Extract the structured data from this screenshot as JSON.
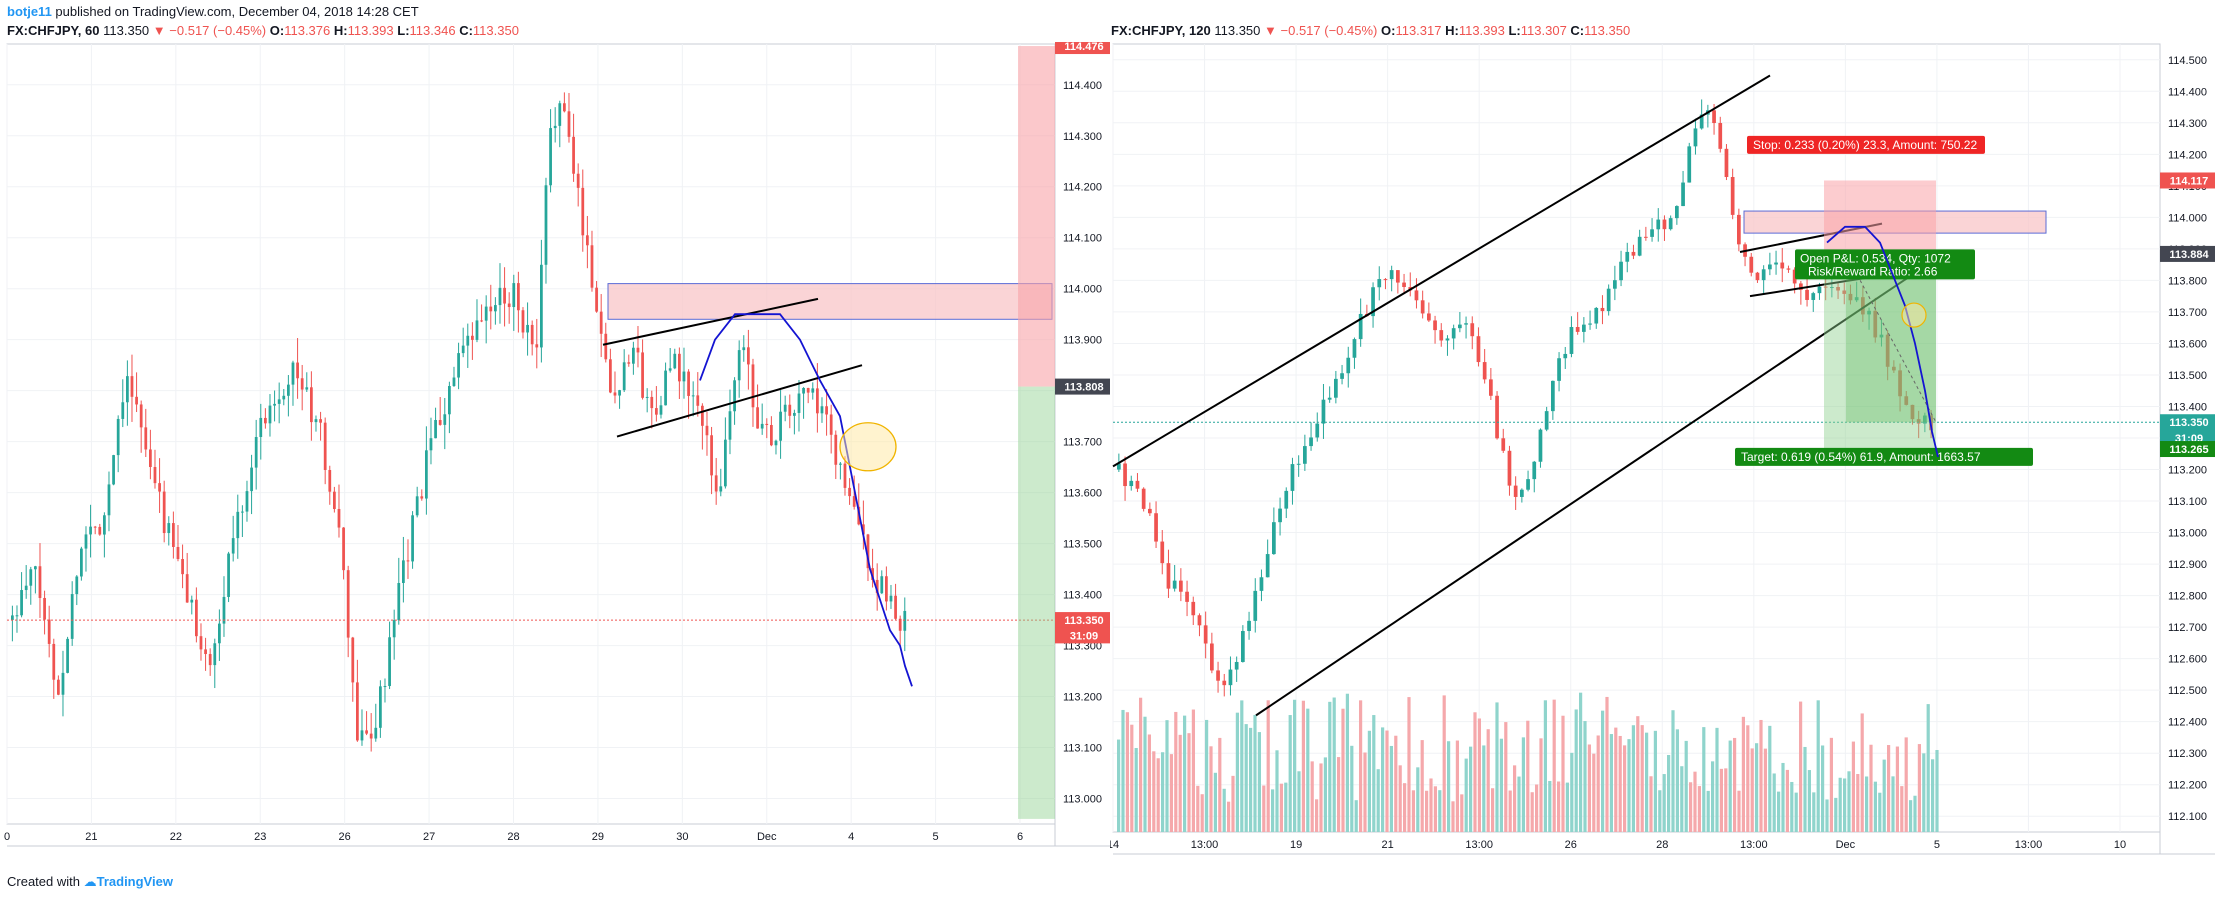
{
  "publisher": {
    "username": "botje11",
    "text": " published on TradingView.com, December 04, 2018 14:28 CET"
  },
  "footer": {
    "prefix": "Created with",
    "brand": "TradingView"
  },
  "colors": {
    "up": "#26a69a",
    "down": "#ef5350",
    "pattern": "#1414d2",
    "zone_fill": "#f8c6c8",
    "zone_stroke": "#5b6bd6",
    "stop_zone": "#f9a3a8",
    "target_zone": "#8fd18f"
  },
  "chart_data": [
    {
      "type": "candlestick",
      "symbol": "FX:CHFJPY",
      "interval": "60",
      "ohlc_header": {
        "last": "113.350",
        "change": "−0.517 (−0.45%)",
        "O": "113.376",
        "H": "113.393",
        "L": "113.346",
        "C": "113.350"
      },
      "ylim": [
        112.95,
        114.48
      ],
      "y_ticks": [
        "114.400",
        "114.300",
        "114.200",
        "114.100",
        "114.000",
        "113.900",
        "113.800",
        "113.700",
        "113.600",
        "113.500",
        "113.400",
        "113.300",
        "113.200",
        "113.100",
        "113.000"
      ],
      "x_ticks": [
        "0",
        "21",
        "22",
        "23",
        "26",
        "27",
        "28",
        "29",
        "30",
        "Dec",
        "4",
        "5",
        "6"
      ],
      "price_badges": [
        {
          "label": "114.476",
          "price": 114.476,
          "color": "#ef5350"
        },
        {
          "label": "113.808",
          "price": 113.808,
          "color": "#434651"
        },
        {
          "label": "113.350",
          "price": 113.35,
          "color": "#ef5350"
        },
        {
          "label": "31:09",
          "price": 113.32,
          "color": "#ef5350"
        }
      ],
      "resistance_zone": [
        113.94,
        114.01
      ],
      "close_line": 113.35,
      "path": [
        [
          0,
          113.35
        ],
        [
          5,
          113.45
        ],
        [
          10,
          113.2
        ],
        [
          15,
          113.5
        ],
        [
          20,
          113.55
        ],
        [
          25,
          113.85
        ],
        [
          30,
          113.65
        ],
        [
          35,
          113.5
        ],
        [
          40,
          113.35
        ],
        [
          44,
          113.25
        ],
        [
          48,
          113.5
        ],
        [
          55,
          113.75
        ],
        [
          62,
          113.85
        ],
        [
          68,
          113.7
        ],
        [
          72,
          113.5
        ],
        [
          76,
          113.1
        ],
        [
          80,
          113.15
        ],
        [
          86,
          113.45
        ],
        [
          92,
          113.7
        ],
        [
          98,
          113.85
        ],
        [
          104,
          113.95
        ],
        [
          110,
          114.0
        ],
        [
          115,
          113.85
        ],
        [
          118,
          114.3
        ],
        [
          120,
          114.38
        ],
        [
          124,
          114.2
        ],
        [
          128,
          113.98
        ],
        [
          132,
          113.78
        ],
        [
          136,
          113.9
        ],
        [
          140,
          113.75
        ],
        [
          145,
          113.85
        ],
        [
          150,
          113.78
        ],
        [
          155,
          113.6
        ],
        [
          160,
          113.9
        ],
        [
          165,
          113.7
        ],
        [
          170,
          113.75
        ],
        [
          175,
          113.8
        ],
        [
          180,
          113.7
        ],
        [
          185,
          113.55
        ],
        [
          190,
          113.42
        ],
        [
          196,
          113.34
        ]
      ],
      "volume": false
    },
    {
      "type": "candlestick",
      "symbol": "FX:CHFJPY",
      "interval": "120",
      "ohlc_header": {
        "last": "113.350",
        "change": "−0.517 (−0.45%)",
        "O": "113.317",
        "H": "113.393",
        "L": "113.307",
        "C": "113.350"
      },
      "ylim": [
        112.05,
        114.55
      ],
      "y_ticks": [
        "114.500",
        "114.400",
        "114.300",
        "114.200",
        "114.100",
        "114.000",
        "113.900",
        "113.800",
        "113.700",
        "113.600",
        "113.500",
        "113.400",
        "113.300",
        "113.200",
        "113.100",
        "113.000",
        "112.900",
        "112.800",
        "112.700",
        "112.600",
        "112.500",
        "112.400",
        "112.300",
        "112.200",
        "112.100"
      ],
      "x_ticks": [
        "14",
        "13:00",
        "19",
        "21",
        "13:00",
        "26",
        "28",
        "13:00",
        "Dec",
        "5",
        "13:00",
        "10"
      ],
      "price_badges": [
        {
          "label": "114.117",
          "price": 114.117,
          "color": "#ef5350"
        },
        {
          "label": "113.884",
          "price": 113.884,
          "color": "#434651"
        },
        {
          "label": "113.350",
          "price": 113.35,
          "color": "#26a69a"
        },
        {
          "label": "31:09",
          "price": 113.3,
          "color": "#26a69a"
        },
        {
          "label": "113.265",
          "price": 113.265,
          "color": "#138a13"
        }
      ],
      "resistance_zone": [
        113.95,
        114.02
      ],
      "close_line": 113.35,
      "position": {
        "stop_label": "Stop: 0.233 (0.20%) 23.3, Amount: 750.22",
        "open_label": "Open P&L: 0.534, Qty: 1072",
        "rr_label": "Risk/Reward Ratio: 2.66",
        "target_label": "Target: 0.619 (0.54%) 61.9, Amount: 1663.57",
        "entry": 113.884,
        "stop": 114.117,
        "target": 113.265
      },
      "path": [
        [
          0,
          113.2
        ],
        [
          4,
          113.1
        ],
        [
          8,
          112.85
        ],
        [
          12,
          112.75
        ],
        [
          16,
          112.5
        ],
        [
          20,
          112.65
        ],
        [
          24,
          112.95
        ],
        [
          28,
          113.2
        ],
        [
          32,
          113.35
        ],
        [
          36,
          113.5
        ],
        [
          40,
          113.7
        ],
        [
          44,
          113.85
        ],
        [
          48,
          113.75
        ],
        [
          52,
          113.6
        ],
        [
          56,
          113.7
        ],
        [
          60,
          113.45
        ],
        [
          64,
          113.1
        ],
        [
          66,
          113.12
        ],
        [
          70,
          113.45
        ],
        [
          74,
          113.65
        ],
        [
          78,
          113.7
        ],
        [
          82,
          113.85
        ],
        [
          86,
          113.95
        ],
        [
          90,
          114.0
        ],
        [
          94,
          114.3
        ],
        [
          96,
          114.35
        ],
        [
          98,
          114.2
        ],
        [
          100,
          113.95
        ],
        [
          104,
          113.8
        ],
        [
          108,
          113.85
        ],
        [
          112,
          113.75
        ],
        [
          116,
          113.8
        ],
        [
          120,
          113.75
        ],
        [
          124,
          113.6
        ],
        [
          128,
          113.4
        ],
        [
          132,
          113.34
        ]
      ],
      "volume": true
    }
  ]
}
